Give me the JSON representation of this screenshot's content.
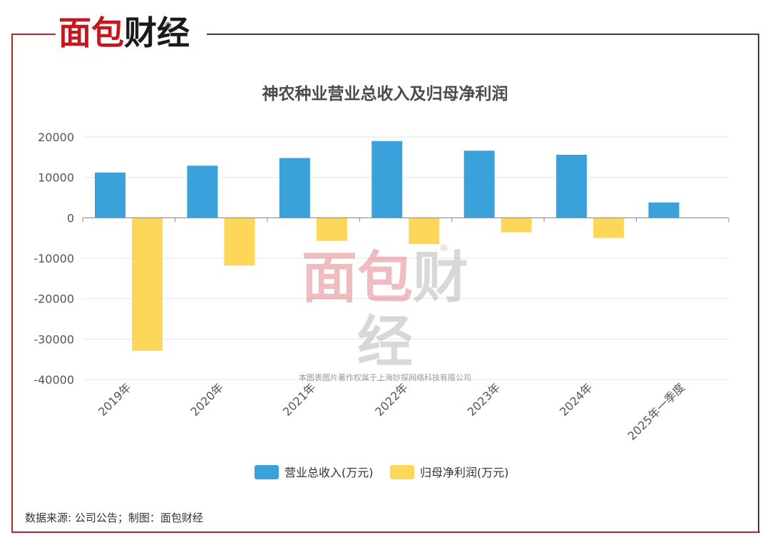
{
  "brand": {
    "logo_red": "面包",
    "logo_black": "财经",
    "registered": "®"
  },
  "watermark": {
    "logo_red": "面包",
    "logo_gray": "财经",
    "registered": "®",
    "note": "本图表图片著作权属于上海妙探网络科技有限公司"
  },
  "source_text": "数据来源: 公司公告；制图：面包财经",
  "colors": {
    "revenue": "#3ba1db",
    "net_profit": "#fdd75a",
    "frame_red": "#b1252d",
    "frame_dark": "#3a3a3a",
    "grid": "#e3e8ef",
    "axis": "#8c8c8c",
    "tick_text": "#555555"
  },
  "chart_data": {
    "type": "bar",
    "title": "神农种业营业总收入及归母净利润",
    "categories": [
      "2019年",
      "2020年",
      "2021年",
      "2022年",
      "2023年",
      "2024年",
      "2025年一季度"
    ],
    "series": [
      {
        "name": "营业总收入(万元)",
        "values": [
          11200,
          12900,
          14800,
          19000,
          16600,
          15600,
          3800
        ]
      },
      {
        "name": "归母净利润(万元)",
        "values": [
          -32900,
          -11800,
          -5700,
          -6500,
          -3600,
          -5000,
          -100
        ]
      }
    ],
    "ylim": [
      -40000,
      20000
    ],
    "yticks": [
      20000,
      10000,
      0,
      -10000,
      -20000,
      -30000,
      -40000
    ],
    "ytick_labels": [
      "20000",
      "10000",
      "0",
      "-10000",
      "-20000",
      "-30000",
      "-40000"
    ],
    "grid": true,
    "legend_position": "bottom-center"
  }
}
